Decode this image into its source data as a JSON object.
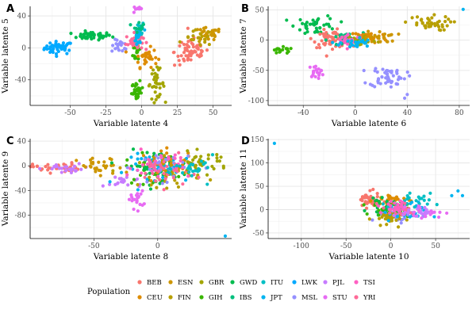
{
  "chart_data": [
    {
      "type": "scatter",
      "panel": "A",
      "xlabel": "Variable latente 4",
      "ylabel": "Variable latente 5",
      "xlim": [
        -78,
        63
      ],
      "ylim": [
        -72,
        52
      ],
      "xticks": [
        -50,
        -25,
        0,
        25,
        50
      ],
      "yticks": [
        -40,
        0,
        40
      ],
      "clusters": [
        {
          "pop": "LWK",
          "cx": -58,
          "cy": 0,
          "sx": 5,
          "sy": 4,
          "n": 45
        },
        {
          "pop": "GWD",
          "cx": -35,
          "cy": 15,
          "sx": 7,
          "sy": 2.5,
          "n": 45
        },
        {
          "pop": "MSL",
          "cx": -15,
          "cy": 2,
          "sx": 3,
          "sy": 4,
          "n": 20
        },
        {
          "pop": "STU",
          "cx": -3,
          "cy": 50,
          "sx": 1.5,
          "sy": 4,
          "n": 15
        },
        {
          "pop": "ITU",
          "cx": -2,
          "cy": 22,
          "sx": 2,
          "sy": 6,
          "n": 20
        },
        {
          "pop": "GIH",
          "cx": -3,
          "cy": -3,
          "sx": 1.5,
          "sy": 8,
          "n": 20
        },
        {
          "pop": "CEU",
          "cx": 3,
          "cy": -12,
          "sx": 4,
          "sy": 6,
          "n": 30
        },
        {
          "pop": "YRI",
          "cx": -5,
          "cy": 8,
          "sx": 3,
          "sy": 5,
          "n": 30
        },
        {
          "pop": "JPT",
          "cx": -2,
          "cy": 12,
          "sx": 2,
          "sy": 6,
          "n": 15
        },
        {
          "pop": "IBS",
          "cx": -2,
          "cy": 28,
          "sx": 2,
          "sy": 4,
          "n": 10
        },
        {
          "pop": "GIH",
          "cx": -3,
          "cy": -55,
          "sx": 2,
          "sy": 6,
          "n": 30
        },
        {
          "pop": "GBR",
          "cx": 10,
          "cy": -45,
          "sx": 3,
          "sy": 9,
          "n": 35
        },
        {
          "pop": "BEB",
          "cx": 35,
          "cy": -5,
          "sx": 6,
          "sy": 9,
          "n": 60
        },
        {
          "pop": "ESN",
          "cx": 46,
          "cy": 17,
          "sx": 5,
          "sy": 4,
          "n": 30
        },
        {
          "pop": "FIN",
          "cx": 40,
          "cy": 12,
          "sx": 5,
          "sy": 5,
          "n": 20
        }
      ]
    },
    {
      "type": "scatter",
      "panel": "B",
      "xlabel": "Variable latente 6",
      "ylabel": "Variable latente 7",
      "xlim": [
        -67,
        88
      ],
      "ylim": [
        -108,
        56
      ],
      "xticks": [
        -40,
        0,
        40,
        80
      ],
      "yticks": [
        -100,
        -50,
        0,
        50
      ],
      "clusters": [
        {
          "pop": "GIH",
          "cx": -57,
          "cy": -18,
          "sx": 5,
          "sy": 3,
          "n": 20
        },
        {
          "pop": "GWD",
          "cx": -30,
          "cy": 25,
          "sx": 8,
          "sy": 8,
          "n": 40
        },
        {
          "pop": "BEB",
          "cx": -18,
          "cy": 2,
          "sx": 7,
          "sy": 7,
          "n": 60
        },
        {
          "pop": "STU",
          "cx": -30,
          "cy": -52,
          "sx": 3,
          "sy": 5,
          "n": 20
        },
        {
          "pop": "IBS",
          "cx": -8,
          "cy": 0,
          "sx": 7,
          "sy": 6,
          "n": 30
        },
        {
          "pop": "CEU",
          "cx": 10,
          "cy": 5,
          "sx": 7,
          "sy": 5,
          "n": 30
        },
        {
          "pop": "GBR",
          "cx": 5,
          "cy": 0,
          "sx": 6,
          "sy": 5,
          "n": 25
        },
        {
          "pop": "TSI",
          "cx": -5,
          "cy": 0,
          "sx": 6,
          "sy": 5,
          "n": 25
        },
        {
          "pop": "JPT",
          "cx": 0,
          "cy": -5,
          "sx": 6,
          "sy": 5,
          "n": 25
        },
        {
          "pop": "MSL",
          "cx": 25,
          "cy": -60,
          "sx": 7,
          "sy": 9,
          "n": 50
        },
        {
          "pop": "FIN",
          "cx": 55,
          "cy": 28,
          "sx": 9,
          "sy": 6,
          "n": 40
        },
        {
          "pop": "ESN",
          "cx": 20,
          "cy": 5,
          "sx": 6,
          "sy": 5,
          "n": 20
        }
      ],
      "points": [
        {
          "pop": "JPT",
          "x": 83,
          "y": 51
        },
        {
          "pop": "MSL",
          "x": 38,
          "y": -96
        },
        {
          "pop": "MSL",
          "x": 40,
          "y": -90
        }
      ]
    },
    {
      "type": "scatter",
      "panel": "C",
      "xlabel": "Variable latente 8",
      "ylabel": "Variable latente 9",
      "xlim": [
        -100,
        58
      ],
      "ylim": [
        -118,
        44
      ],
      "xticks": [
        -50,
        0
      ],
      "yticks": [
        -80,
        -40,
        0,
        40
      ],
      "clusters": [
        {
          "pop": "BEB",
          "cx": -80,
          "cy": -3,
          "sx": 9,
          "sy": 4,
          "n": 35
        },
        {
          "pop": "PJL",
          "cx": -70,
          "cy": -5,
          "sx": 10,
          "sy": 4,
          "n": 25
        },
        {
          "pop": "ESN",
          "cx": -45,
          "cy": -3,
          "sx": 9,
          "sy": 8,
          "n": 30
        },
        {
          "pop": "PJL",
          "cx": -25,
          "cy": -25,
          "sx": 8,
          "sy": 6,
          "n": 20
        },
        {
          "pop": "STU",
          "cx": -17,
          "cy": -55,
          "sx": 3,
          "sy": 7,
          "n": 20
        },
        {
          "pop": "GIH",
          "cx": -5,
          "cy": -5,
          "sx": 10,
          "sy": 12,
          "n": 40
        },
        {
          "pop": "GWD",
          "cx": 0,
          "cy": 0,
          "sx": 12,
          "sy": 12,
          "n": 50
        },
        {
          "pop": "JPT",
          "cx": 5,
          "cy": -5,
          "sx": 15,
          "sy": 12,
          "n": 40
        },
        {
          "pop": "FIN",
          "cx": 10,
          "cy": -10,
          "sx": 12,
          "sy": 12,
          "n": 40
        },
        {
          "pop": "CEU",
          "cx": 10,
          "cy": 5,
          "sx": 12,
          "sy": 10,
          "n": 30
        },
        {
          "pop": "MSL",
          "cx": 5,
          "cy": 0,
          "sx": 12,
          "sy": 12,
          "n": 30
        },
        {
          "pop": "TSI",
          "cx": 0,
          "cy": 0,
          "sx": 12,
          "sy": 12,
          "n": 30
        },
        {
          "pop": "YRI",
          "cx": 5,
          "cy": -10,
          "sx": 10,
          "sy": 12,
          "n": 30
        },
        {
          "pop": "GBR",
          "cx": 35,
          "cy": 5,
          "sx": 10,
          "sy": 8,
          "n": 35
        },
        {
          "pop": "ITU",
          "cx": 30,
          "cy": -5,
          "sx": 8,
          "sy": 10,
          "n": 25
        }
      ],
      "points": [
        {
          "pop": "JPT",
          "x": 53,
          "y": -114
        }
      ]
    },
    {
      "type": "scatter",
      "panel": "D",
      "xlabel": "Variable latente 10",
      "ylabel": "Variable latente 11",
      "xlim": [
        -137,
        88
      ],
      "ylim": [
        -62,
        152
      ],
      "xticks": [
        -100,
        -50,
        0,
        50
      ],
      "yticks": [
        -50,
        0,
        50,
        100,
        150
      ],
      "clusters": [
        {
          "pop": "BEB",
          "cx": -25,
          "cy": 20,
          "sx": 6,
          "sy": 8,
          "n": 45
        },
        {
          "pop": "CEU",
          "cx": 0,
          "cy": 20,
          "sx": 10,
          "sy": 8,
          "n": 30
        },
        {
          "pop": "GWD",
          "cx": -5,
          "cy": 5,
          "sx": 10,
          "sy": 8,
          "n": 40
        },
        {
          "pop": "GIH",
          "cx": 0,
          "cy": 0,
          "sx": 10,
          "sy": 8,
          "n": 40
        },
        {
          "pop": "MSL",
          "cx": 10,
          "cy": -10,
          "sx": 12,
          "sy": 8,
          "n": 35
        },
        {
          "pop": "FIN",
          "cx": -5,
          "cy": -20,
          "sx": 8,
          "sy": 8,
          "n": 30
        },
        {
          "pop": "JPT",
          "cx": 15,
          "cy": -5,
          "sx": 12,
          "sy": 10,
          "n": 30
        },
        {
          "pop": "ITU",
          "cx": 20,
          "cy": 15,
          "sx": 12,
          "sy": 10,
          "n": 25
        },
        {
          "pop": "YRI",
          "cx": 10,
          "cy": 0,
          "sx": 10,
          "sy": 8,
          "n": 25
        },
        {
          "pop": "TSI",
          "cx": 5,
          "cy": 5,
          "sx": 10,
          "sy": 8,
          "n": 20
        },
        {
          "pop": "STU",
          "cx": 40,
          "cy": -5,
          "sx": 10,
          "sy": 6,
          "n": 20
        },
        {
          "pop": "PJL",
          "cx": 30,
          "cy": -5,
          "sx": 8,
          "sy": 5,
          "n": 15
        }
      ],
      "points": [
        {
          "pop": "JPT",
          "x": -130,
          "y": 142
        },
        {
          "pop": "JPT",
          "x": 75,
          "y": 40
        },
        {
          "pop": "JPT",
          "x": 80,
          "y": 30
        },
        {
          "pop": "JPT",
          "x": 68,
          "y": 30
        }
      ]
    }
  ],
  "legend": {
    "title": "Population",
    "items": [
      {
        "label": "BEB",
        "color": "#F8766D"
      },
      {
        "label": "CEU",
        "color": "#DE8C00"
      },
      {
        "label": "ESN",
        "color": "#CD9600"
      },
      {
        "label": "FIN",
        "color": "#B79F00"
      },
      {
        "label": "GBR",
        "color": "#A3A500"
      },
      {
        "label": "GIH",
        "color": "#39B600"
      },
      {
        "label": "GWD",
        "color": "#00BB4E"
      },
      {
        "label": "IBS",
        "color": "#00BF7D"
      },
      {
        "label": "ITU",
        "color": "#00BFC4"
      },
      {
        "label": "JPT",
        "color": "#00B4F0"
      },
      {
        "label": "LWK",
        "color": "#00A9FF"
      },
      {
        "label": "MSL",
        "color": "#9590FF"
      },
      {
        "label": "PJL",
        "color": "#C77CFF"
      },
      {
        "label": "STU",
        "color": "#E76BF3"
      },
      {
        "label": "TSI",
        "color": "#FF61C3"
      },
      {
        "label": "YRI",
        "color": "#FF6A98"
      }
    ]
  }
}
